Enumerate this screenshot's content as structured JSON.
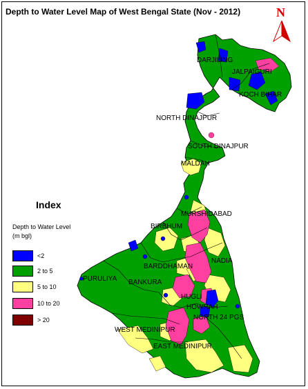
{
  "title": "Depth to Water Level Map of West Bengal State (Nov - 2012)",
  "north_label": "N",
  "legend": {
    "heading": "Index",
    "subtitle_line1": "Depth to Water Level",
    "subtitle_line2": "(m bgl)",
    "items": [
      {
        "label": "<2",
        "color": "#0000ff"
      },
      {
        "label": "2 to 5",
        "color": "#00a000"
      },
      {
        "label": "5 to 10",
        "color": "#ffff80"
      },
      {
        "label": "10 to 20",
        "color": "#ff40a0"
      },
      {
        "label": "> 20",
        "color": "#800000"
      }
    ]
  },
  "districts": [
    {
      "key": "darjiling",
      "name": "DARJILING"
    },
    {
      "key": "jalpaiguri",
      "name": "JALPAIGURI"
    },
    {
      "key": "koch_bihar",
      "name": "KOCH BIHAR"
    },
    {
      "key": "north_dinajpur",
      "name": "NORTH DINAJPUR"
    },
    {
      "key": "south_dinajpur",
      "name": "SOUTH DINAJPUR"
    },
    {
      "key": "maldah",
      "name": "MALDAH"
    },
    {
      "key": "murshidabad",
      "name": "MURSHIDABAD"
    },
    {
      "key": "birbhum",
      "name": "BIRBHUM"
    },
    {
      "key": "nadia",
      "name": "NADIA"
    },
    {
      "key": "barddhaman",
      "name": "BARDDHAMAN"
    },
    {
      "key": "puruliya",
      "name": "PURULIYA"
    },
    {
      "key": "bankura",
      "name": "BANKURA"
    },
    {
      "key": "hugli",
      "name": "HUGLI"
    },
    {
      "key": "north_24_pgs",
      "name": "NORTH 24 PGS"
    },
    {
      "key": "howrah",
      "name": "HOWRAH"
    },
    {
      "key": "west_medinipur",
      "name": "WEST MEDINIPUR"
    },
    {
      "key": "east_medinipur",
      "name": "EAST MEDINIPUR"
    }
  ]
}
